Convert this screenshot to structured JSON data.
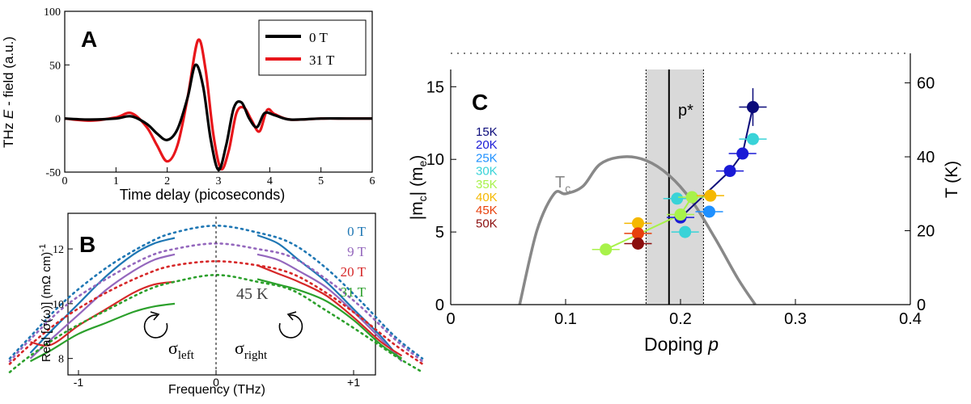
{
  "panels": {
    "A": {
      "label": "A",
      "ylabel_prefix": "THz ",
      "ylabel_italic": "E",
      "ylabel_suffix": " - field (a.u.)",
      "xlabel": "Time delay (picoseconds)",
      "legend": [
        "0 T",
        "31 T"
      ]
    },
    "B": {
      "label": "B",
      "ylabel": "Real [σ(ω)] (mΩ cm)",
      "ylabel_sup": "-1",
      "xlabel": "Frequency (THz)",
      "temperature": "45 K",
      "sigma_left": "σ",
      "sigma_left_sub": "left",
      "sigma_right": "σ",
      "sigma_right_sub": "right",
      "legend": [
        "0 T",
        "9 T",
        "20 T",
        "31 T"
      ]
    },
    "C": {
      "label": "C",
      "ylabel_left": "|m",
      "ylabel_left_sub1": "c",
      "ylabel_left_mid": "| (m",
      "ylabel_left_sub2": "e",
      "ylabel_left_end": ")",
      "ylabel_right": "T (K)",
      "xlabel": "Doping ",
      "xlabel_italic": "p",
      "pstar": "p*",
      "tc_label": "T",
      "tc_sub": "c",
      "temps": [
        "15K",
        "20K",
        "25K",
        "30K",
        "35K",
        "40K",
        "45K",
        "50K"
      ]
    }
  },
  "colors": {
    "A_0T": "#000000",
    "A_31T": "#e8161b",
    "B_0T": "#1f77b4",
    "B_9T": "#9467bd",
    "B_20T": "#d62728",
    "B_31T": "#2ca02c",
    "T15": "#0a0a7a",
    "T20": "#1a1ad6",
    "T25": "#1e90ff",
    "T30": "#39d3d8",
    "T35": "#a8f24a",
    "T40": "#f5b800",
    "T45": "#e8400c",
    "T50": "#8b0e0e",
    "tc": "#888888",
    "band": "#d9d9d9"
  },
  "chart_data": [
    {
      "panel": "A",
      "type": "line",
      "xlabel": "Time delay (picoseconds)",
      "ylabel": "THz E - field (a.u.)",
      "xlim": [
        0,
        6
      ],
      "ylim": [
        -50,
        100
      ],
      "xticks": [
        0,
        1,
        2,
        3,
        4,
        5,
        6
      ],
      "yticks": [
        -50,
        0,
        50,
        100
      ],
      "legend_position": "top-right",
      "series": [
        {
          "name": "0 T",
          "x": [
            0,
            0.5,
            1.0,
            1.3,
            1.6,
            1.8,
            2.0,
            2.2,
            2.4,
            2.55,
            2.7,
            2.85,
            3.0,
            3.15,
            3.3,
            3.45,
            3.6,
            3.75,
            3.9,
            4.1,
            4.4,
            5.0,
            5.5,
            6.0
          ],
          "y": [
            0,
            -1,
            0,
            2,
            -5,
            -14,
            -20,
            -10,
            20,
            50,
            30,
            -20,
            -48,
            -25,
            10,
            15,
            0,
            -8,
            5,
            3,
            -1,
            0,
            0,
            0
          ]
        },
        {
          "name": "31 T",
          "x": [
            0,
            0.5,
            1.0,
            1.3,
            1.6,
            1.8,
            2.0,
            2.2,
            2.4,
            2.6,
            2.75,
            2.9,
            3.05,
            3.2,
            3.35,
            3.5,
            3.65,
            3.8,
            3.95,
            4.1,
            4.4,
            5.0,
            5.5,
            6.0
          ],
          "y": [
            0,
            -2,
            1,
            5,
            -8,
            -25,
            -40,
            -25,
            20,
            73,
            45,
            -15,
            -47,
            -30,
            5,
            10,
            -2,
            -12,
            8,
            4,
            -1,
            0,
            0,
            0
          ]
        }
      ]
    },
    {
      "panel": "B",
      "type": "line",
      "xlabel": "Frequency (THz)",
      "ylabel": "Real [σ(ω)] (mΩ cm)-1",
      "xlim": [
        -1.6,
        1.6
      ],
      "ylim": [
        7.4,
        13.3
      ],
      "xticks": [
        -1,
        0,
        1
      ],
      "xtick_labels": [
        "-1",
        "0",
        "+1"
      ],
      "yticks": [
        8,
        10,
        12
      ],
      "legend_position": "top-right",
      "series": [
        {
          "name": "0 T",
          "x": [
            -1.5,
            -1.35,
            -1.1,
            -0.8,
            -0.5,
            -0.3,
            0,
            0.3,
            0.55,
            0.8,
            1.05,
            1.3,
            1.5
          ],
          "y_fit": [
            8.0,
            8.8,
            10.1,
            11.3,
            12.2,
            12.6,
            12.85,
            12.6,
            12.2,
            11.3,
            10.1,
            8.8,
            8.0
          ],
          "x_meas": [
            -1.35,
            -1.2,
            -1.0,
            -0.8,
            -0.6,
            -0.45,
            -0.3,
            0.3,
            0.45,
            0.6,
            0.8,
            1.0,
            1.2,
            1.35
          ],
          "y_meas": [
            8.2,
            9.0,
            10.0,
            11.0,
            11.8,
            12.2,
            12.4,
            12.5,
            12.2,
            11.6,
            10.8,
            9.8,
            8.8,
            7.9
          ]
        },
        {
          "name": "9 T",
          "x": [
            -1.5,
            -1.35,
            -1.1,
            -0.8,
            -0.5,
            -0.3,
            0,
            0.3,
            0.55,
            0.8,
            1.05,
            1.3,
            1.5
          ],
          "y_fit": [
            7.9,
            8.7,
            9.9,
            10.9,
            11.7,
            12.0,
            12.2,
            12.0,
            11.7,
            10.9,
            9.9,
            8.7,
            7.9
          ],
          "x_meas": [
            -1.35,
            -1.2,
            -1.0,
            -0.8,
            -0.6,
            -0.45,
            -0.3,
            0.3,
            0.45,
            0.6,
            0.8,
            1.0,
            1.2,
            1.35
          ],
          "y_meas": [
            8.0,
            8.7,
            9.6,
            10.5,
            11.2,
            11.6,
            11.8,
            11.8,
            11.6,
            11.2,
            10.6,
            9.7,
            8.7,
            7.9
          ]
        },
        {
          "name": "20 T",
          "x": [
            -1.5,
            -1.35,
            -1.1,
            -0.8,
            -0.5,
            -0.3,
            0,
            0.3,
            0.55,
            0.8,
            1.05,
            1.3,
            1.5
          ],
          "y_fit": [
            7.8,
            8.5,
            9.5,
            10.4,
            11.1,
            11.4,
            11.55,
            11.4,
            11.1,
            10.4,
            9.5,
            8.5,
            7.8
          ],
          "x_meas": [
            -1.35,
            -1.2,
            -1.0,
            -0.8,
            -0.6,
            -0.45,
            -0.3,
            0.3,
            0.45,
            0.6,
            0.8,
            1.0,
            1.2,
            1.35
          ],
          "y_meas": [
            8.6,
            8.5,
            9.2,
            9.8,
            10.4,
            10.7,
            10.8,
            11.4,
            11.1,
            10.8,
            10.3,
            9.5,
            8.6,
            8.1
          ]
        },
        {
          "name": "31 T",
          "x": [
            -1.5,
            -1.35,
            -1.1,
            -0.8,
            -0.5,
            -0.3,
            0,
            0.3,
            0.55,
            0.8,
            1.05,
            1.3,
            1.5
          ],
          "y_fit": [
            7.5,
            8.1,
            8.95,
            9.75,
            10.5,
            10.8,
            11.05,
            10.8,
            10.5,
            9.75,
            8.95,
            8.1,
            7.5
          ],
          "x_meas": [
            -1.35,
            -1.2,
            -1.0,
            -0.8,
            -0.6,
            -0.45,
            -0.3,
            0.3,
            0.45,
            0.6,
            0.8,
            1.0,
            1.2,
            1.35
          ],
          "y_meas": [
            7.9,
            8.3,
            8.9,
            9.3,
            9.7,
            9.9,
            10.0,
            10.9,
            10.7,
            10.5,
            10.1,
            9.4,
            8.5,
            8.0
          ]
        }
      ]
    },
    {
      "panel": "C",
      "type": "scatter",
      "xlabel": "Doping p",
      "ylabel": "|mc| (me)",
      "ylabel_right": "T (K)",
      "xlim": [
        0,
        0.4
      ],
      "ylim": [
        0,
        17.3
      ],
      "ylim_right": [
        0,
        68
      ],
      "xticks": [
        0,
        0.1,
        0.2,
        0.3,
        0.4
      ],
      "yticks": [
        0,
        5,
        10,
        15
      ],
      "yticks_right": [
        0,
        20,
        40,
        60
      ],
      "pstar_line": 0.19,
      "band": [
        0.17,
        0.22
      ],
      "tc_curve": {
        "p": [
          0.06,
          0.075,
          0.09,
          0.1,
          0.115,
          0.13,
          0.15,
          0.17,
          0.19,
          0.21,
          0.23,
          0.25,
          0.265
        ],
        "T": [
          0,
          20,
          30,
          30,
          32,
          38,
          40,
          39,
          35,
          28,
          18,
          7,
          0
        ]
      },
      "series": [
        {
          "name": "15K",
          "p": [
            0.263
          ],
          "m": [
            13.6
          ],
          "xerr": 0.012,
          "yerr": 1.3
        },
        {
          "name": "20K",
          "p": [
            0.254,
            0.243,
            0.2
          ],
          "m": [
            10.4,
            9.2,
            6.0
          ],
          "xerr": 0.012,
          "yerr": 0.4
        },
        {
          "name": "25K",
          "p": [
            0.225
          ],
          "m": [
            6.4
          ],
          "xerr": 0.012,
          "yerr": 0.3
        },
        {
          "name": "30K",
          "p": [
            0.263,
            0.204,
            0.197
          ],
          "m": [
            11.4,
            5.0,
            7.3
          ],
          "xerr": 0.012,
          "yerr": 0.3
        },
        {
          "name": "35K",
          "p": [
            0.135,
            0.2,
            0.21
          ],
          "m": [
            3.8,
            6.2,
            7.4
          ],
          "xerr": 0.012,
          "yerr": 0.3
        },
        {
          "name": "40K",
          "p": [
            0.163,
            0.226
          ],
          "m": [
            5.6,
            7.5
          ],
          "xerr": 0.012,
          "yerr": 0.3
        },
        {
          "name": "45K",
          "p": [
            0.163
          ],
          "m": [
            4.9
          ],
          "xerr": 0.012,
          "yerr": 0.3
        },
        {
          "name": "50K",
          "p": [
            0.163
          ],
          "m": [
            4.2
          ],
          "xerr": 0.012,
          "yerr": 0.3
        }
      ]
    }
  ]
}
